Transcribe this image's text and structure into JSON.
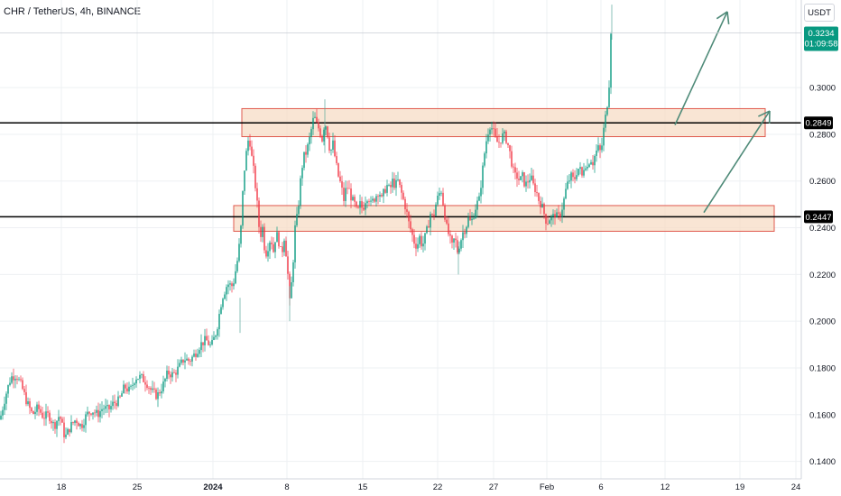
{
  "header": {
    "title": "CHR / TetherUS, 4h, BINANCE",
    "currency": "USDT"
  },
  "colors": {
    "up": "#089981",
    "down": "#f23645",
    "level_line": "#000000",
    "zone_fill": "#f7dcc6",
    "zone_border": "#e05a4f",
    "arrow": "#4e8a78",
    "grid": "#eef0f3",
    "background": "#ffffff",
    "axis_text": "#131722",
    "price_badge": "#089981"
  },
  "chart_data": {
    "type": "candlestick",
    "x_ticks": [
      "18",
      "25",
      "2024",
      "8",
      "15",
      "22",
      "27",
      "Feb",
      "6",
      "12",
      "19",
      "24"
    ],
    "y_ticks": [
      "0.3000",
      "0.2800",
      "0.2600",
      "0.2400",
      "0.2200",
      "0.2000",
      "0.1800",
      "0.1600",
      "0.1400"
    ],
    "y_range": [
      0.1325,
      0.3375
    ],
    "current_price": {
      "value": "0.3234",
      "countdown": "01:09:58"
    },
    "horizontal_levels": [
      {
        "value": 0.2849,
        "label": "0.2849"
      },
      {
        "value": 0.2447,
        "label": "0.2447"
      }
    ],
    "zones": [
      {
        "name": "resistance-zone",
        "from": 0.279,
        "to": 0.291
      },
      {
        "name": "support-zone",
        "from": 0.2385,
        "to": 0.2495
      }
    ],
    "close_path": [
      [
        0,
        0.158
      ],
      [
        6,
        0.168
      ],
      [
        12,
        0.176
      ],
      [
        18,
        0.177
      ],
      [
        24,
        0.172
      ],
      [
        30,
        0.165
      ],
      [
        36,
        0.16
      ],
      [
        42,
        0.163
      ],
      [
        48,
        0.159
      ],
      [
        54,
        0.16
      ],
      [
        60,
        0.155
      ],
      [
        66,
        0.16
      ],
      [
        72,
        0.15
      ],
      [
        78,
        0.155
      ],
      [
        84,
        0.158
      ],
      [
        90,
        0.155
      ],
      [
        96,
        0.16
      ],
      [
        102,
        0.162
      ],
      [
        108,
        0.16
      ],
      [
        114,
        0.163
      ],
      [
        120,
        0.162
      ],
      [
        126,
        0.165
      ],
      [
        132,
        0.166
      ],
      [
        138,
        0.172
      ],
      [
        144,
        0.17
      ],
      [
        150,
        0.176
      ],
      [
        156,
        0.176
      ],
      [
        162,
        0.174
      ],
      [
        168,
        0.17
      ],
      [
        174,
        0.168
      ],
      [
        180,
        0.172
      ],
      [
        186,
        0.178
      ],
      [
        192,
        0.177
      ],
      [
        198,
        0.18
      ],
      [
        204,
        0.184
      ],
      [
        210,
        0.183
      ],
      [
        216,
        0.186
      ],
      [
        222,
        0.19
      ],
      [
        228,
        0.192
      ],
      [
        234,
        0.189
      ],
      [
        240,
        0.196
      ],
      [
        246,
        0.21
      ],
      [
        252,
        0.216
      ],
      [
        258,
        0.215
      ],
      [
        264,
        0.228
      ],
      [
        267,
        0.24
      ],
      [
        270,
        0.262
      ],
      [
        273,
        0.272
      ],
      [
        276,
        0.28
      ],
      [
        279,
        0.27
      ],
      [
        282,
        0.262
      ],
      [
        285,
        0.25
      ],
      [
        288,
        0.236
      ],
      [
        291,
        0.24
      ],
      [
        294,
        0.228
      ],
      [
        297,
        0.232
      ],
      [
        300,
        0.236
      ],
      [
        303,
        0.23
      ],
      [
        306,
        0.238
      ],
      [
        309,
        0.234
      ],
      [
        312,
        0.228
      ],
      [
        315,
        0.236
      ],
      [
        318,
        0.226
      ],
      [
        321,
        0.208
      ],
      [
        324,
        0.22
      ],
      [
        327,
        0.24
      ],
      [
        330,
        0.246
      ],
      [
        333,
        0.26
      ],
      [
        336,
        0.27
      ],
      [
        339,
        0.272
      ],
      [
        342,
        0.276
      ],
      [
        345,
        0.282
      ],
      [
        348,
        0.288
      ],
      [
        351,
        0.284
      ],
      [
        354,
        0.282
      ],
      [
        357,
        0.278
      ],
      [
        360,
        0.286
      ],
      [
        363,
        0.28
      ],
      [
        366,
        0.272
      ],
      [
        369,
        0.276
      ],
      [
        372,
        0.268
      ],
      [
        375,
        0.262
      ],
      [
        378,
        0.258
      ],
      [
        381,
        0.252
      ],
      [
        384,
        0.258
      ],
      [
        387,
        0.256
      ],
      [
        390,
        0.252
      ],
      [
        393,
        0.25
      ],
      [
        396,
        0.246
      ],
      [
        399,
        0.25
      ],
      [
        402,
        0.248
      ],
      [
        405,
        0.252
      ],
      [
        408,
        0.254
      ],
      [
        411,
        0.25
      ],
      [
        414,
        0.252
      ],
      [
        417,
        0.254
      ],
      [
        420,
        0.256
      ],
      [
        423,
        0.252
      ],
      [
        426,
        0.256
      ],
      [
        429,
        0.258
      ],
      [
        432,
        0.256
      ],
      [
        435,
        0.26
      ],
      [
        438,
        0.258
      ],
      [
        441,
        0.26
      ],
      [
        444,
        0.256
      ],
      [
        447,
        0.252
      ],
      [
        450,
        0.248
      ],
      [
        453,
        0.242
      ],
      [
        456,
        0.238
      ],
      [
        459,
        0.234
      ],
      [
        462,
        0.232
      ],
      [
        465,
        0.236
      ],
      [
        468,
        0.232
      ],
      [
        471,
        0.236
      ],
      [
        474,
        0.24
      ],
      [
        477,
        0.246
      ],
      [
        480,
        0.244
      ],
      [
        483,
        0.25
      ],
      [
        486,
        0.254
      ],
      [
        489,
        0.256
      ],
      [
        492,
        0.248
      ],
      [
        495,
        0.24
      ],
      [
        498,
        0.236
      ],
      [
        501,
        0.232
      ],
      [
        504,
        0.236
      ],
      [
        507,
        0.23
      ],
      [
        510,
        0.234
      ],
      [
        513,
        0.238
      ],
      [
        516,
        0.24
      ],
      [
        519,
        0.244
      ],
      [
        522,
        0.242
      ],
      [
        525,
        0.246
      ],
      [
        528,
        0.25
      ],
      [
        531,
        0.252
      ],
      [
        534,
        0.262
      ],
      [
        537,
        0.272
      ],
      [
        540,
        0.28
      ],
      [
        543,
        0.284
      ],
      [
        546,
        0.282
      ],
      [
        549,
        0.278
      ],
      [
        552,
        0.276
      ],
      [
        555,
        0.278
      ],
      [
        558,
        0.28
      ],
      [
        561,
        0.278
      ],
      [
        564,
        0.274
      ],
      [
        567,
        0.268
      ],
      [
        570,
        0.262
      ],
      [
        573,
        0.262
      ],
      [
        576,
        0.26
      ],
      [
        579,
        0.262
      ],
      [
        582,
        0.258
      ],
      [
        585,
        0.26
      ],
      [
        588,
        0.262
      ],
      [
        591,
        0.258
      ],
      [
        594,
        0.256
      ],
      [
        597,
        0.252
      ],
      [
        600,
        0.25
      ],
      [
        603,
        0.246
      ],
      [
        606,
        0.242
      ],
      [
        609,
        0.244
      ],
      [
        612,
        0.244
      ],
      [
        615,
        0.246
      ],
      [
        618,
        0.244
      ],
      [
        621,
        0.246
      ],
      [
        624,
        0.25
      ],
      [
        627,
        0.256
      ],
      [
        630,
        0.26
      ],
      [
        633,
        0.262
      ],
      [
        636,
        0.26
      ],
      [
        639,
        0.264
      ],
      [
        642,
        0.266
      ],
      [
        645,
        0.262
      ],
      [
        648,
        0.268
      ],
      [
        651,
        0.266
      ],
      [
        654,
        0.27
      ],
      [
        657,
        0.268
      ],
      [
        660,
        0.272
      ],
      [
        663,
        0.274
      ],
      [
        666,
        0.272
      ],
      [
        669,
        0.282
      ],
      [
        672,
        0.29
      ],
      [
        675,
        0.3
      ],
      [
        677,
        0.323
      ]
    ],
    "arrows": [
      {
        "from": [
          748,
          0.284
        ],
        "to": [
          806,
          0.3325
        ]
      },
      {
        "from": [
          780,
          0.2465
        ],
        "to": [
          853,
          0.29
        ]
      }
    ]
  }
}
